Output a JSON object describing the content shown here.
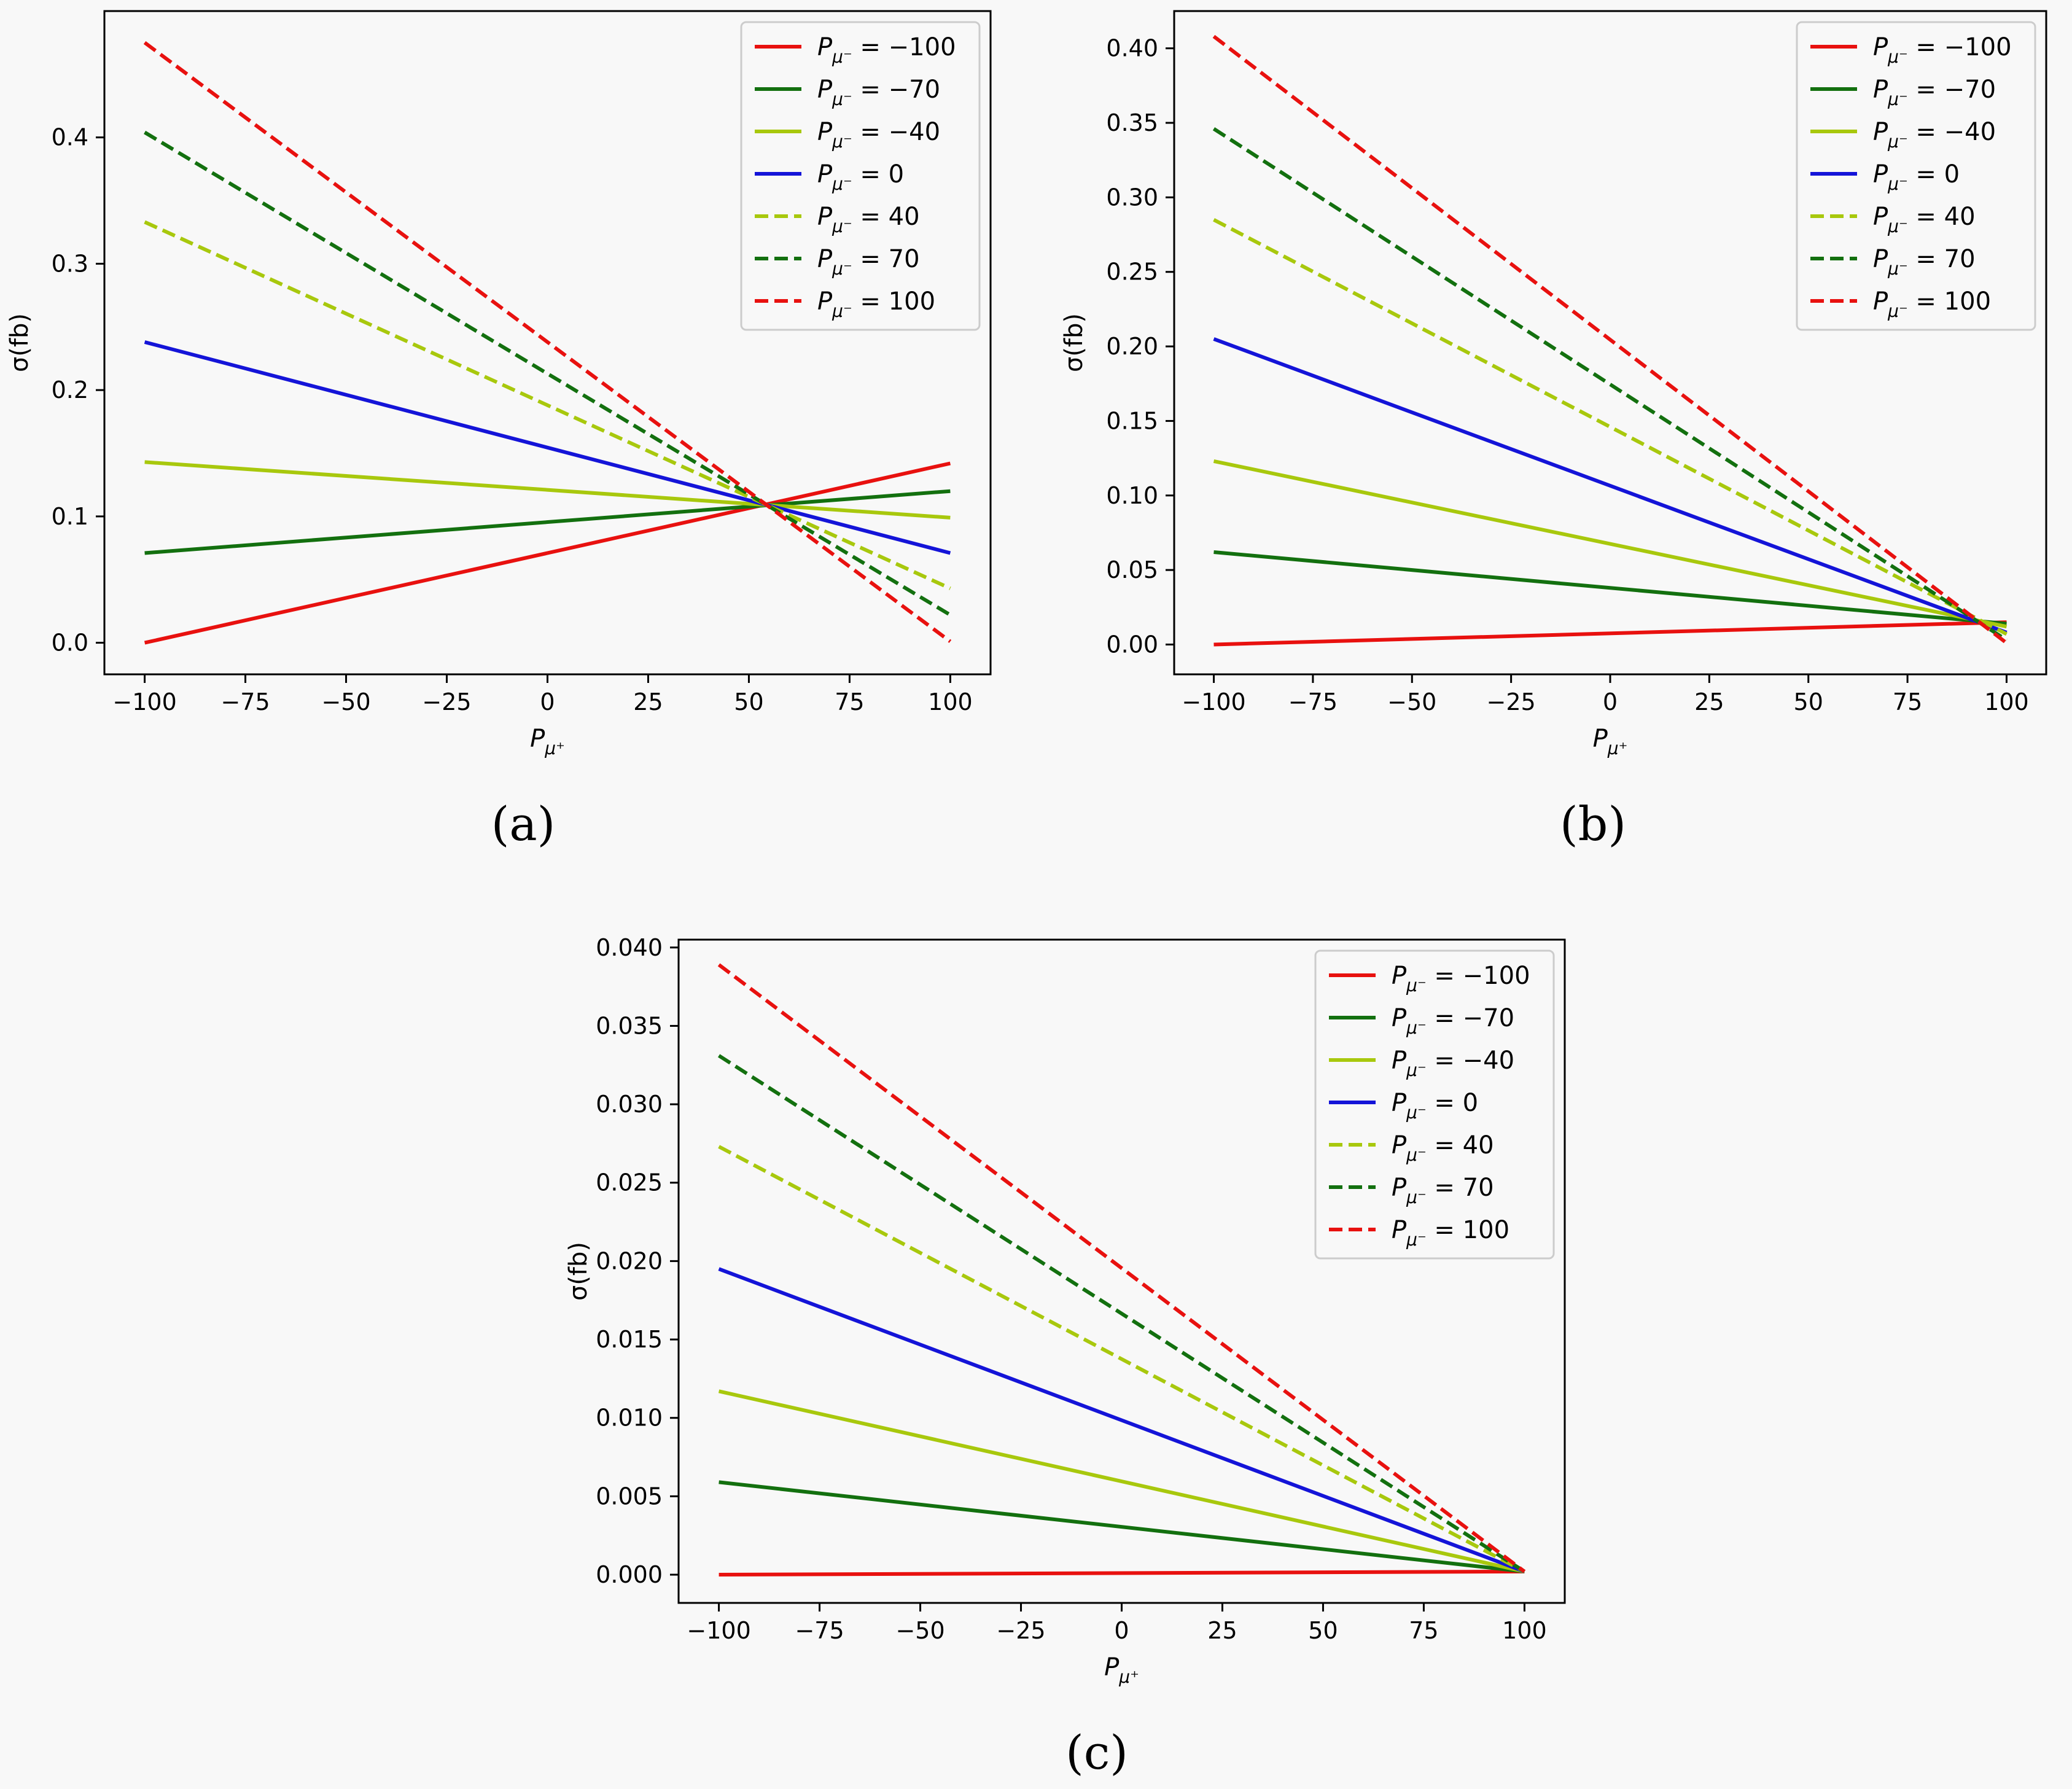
{
  "chart_data": [
    {
      "type": "line",
      "caption": "(a)",
      "xlabel": "P",
      "xlabel_sub": "μ⁺",
      "ylabel": "σ(fb)",
      "xlim": [
        -110,
        110
      ],
      "ylim": [
        -0.025,
        0.5
      ],
      "xticks": [
        -100,
        -75,
        -50,
        -25,
        0,
        25,
        50,
        75,
        100
      ],
      "xtick_labels": [
        "−100",
        "−75",
        "−50",
        "−25",
        "0",
        "25",
        "50",
        "75",
        "100"
      ],
      "yticks": [
        0.0,
        0.1,
        0.2,
        0.3,
        0.4
      ],
      "ytick_labels": [
        "0.0",
        "0.1",
        "0.2",
        "0.3",
        "0.4"
      ],
      "legend_position": "top-right",
      "series": [
        {
          "name": "P_{μ⁻} = −100",
          "label_main": "P",
          "label_sub": "μ⁻",
          "label_value": " = −100",
          "color": "#e8110f",
          "dash": "solid",
          "x": [
            -100,
            100
          ],
          "y": [
            0.0,
            0.142
          ]
        },
        {
          "name": "P_{μ⁻} = −70",
          "label_main": "P",
          "label_sub": "μ⁻",
          "label_value": " = −70",
          "color": "#13700f",
          "dash": "solid",
          "x": [
            -100,
            100
          ],
          "y": [
            0.071,
            0.12
          ]
        },
        {
          "name": "P_{μ⁻} = −40",
          "label_main": "P",
          "label_sub": "μ⁻",
          "label_value": " = −40",
          "color": "#a8c80d",
          "dash": "solid",
          "x": [
            -100,
            100
          ],
          "y": [
            0.143,
            0.099
          ]
        },
        {
          "name": "P_{μ⁻} = 0",
          "label_main": "P",
          "label_sub": "μ⁻",
          "label_value": " = 0",
          "color": "#1414d8",
          "dash": "solid",
          "x": [
            -100,
            100
          ],
          "y": [
            0.238,
            0.071
          ]
        },
        {
          "name": "P_{μ⁻} = 40",
          "label_main": "P",
          "label_sub": "μ⁻",
          "label_value": " = 40",
          "color": "#a8c80d",
          "dash": "dashed",
          "x": [
            -100,
            100
          ],
          "y": [
            0.333,
            0.043
          ]
        },
        {
          "name": "P_{μ⁻} = 70",
          "label_main": "P",
          "label_sub": "μ⁻",
          "label_value": " = 70",
          "color": "#13700f",
          "dash": "dashed",
          "x": [
            -100,
            100
          ],
          "y": [
            0.404,
            0.022
          ]
        },
        {
          "name": "P_{μ⁻} = 100",
          "label_main": "P",
          "label_sub": "μ⁻",
          "label_value": " = 100",
          "color": "#e8110f",
          "dash": "dashed",
          "x": [
            -100,
            100
          ],
          "y": [
            0.475,
            0.001
          ]
        }
      ]
    },
    {
      "type": "line",
      "caption": "(b)",
      "xlabel": "P",
      "xlabel_sub": "μ⁺",
      "ylabel": "σ(fb)",
      "xlim": [
        -110,
        110
      ],
      "ylim": [
        -0.02,
        0.425
      ],
      "xticks": [
        -100,
        -75,
        -50,
        -25,
        0,
        25,
        50,
        75,
        100
      ],
      "xtick_labels": [
        "−100",
        "−75",
        "−50",
        "−25",
        "0",
        "25",
        "50",
        "75",
        "100"
      ],
      "yticks": [
        0.0,
        0.05,
        0.1,
        0.15,
        0.2,
        0.25,
        0.3,
        0.35,
        0.4
      ],
      "ytick_labels": [
        "0.00",
        "0.05",
        "0.10",
        "0.15",
        "0.20",
        "0.25",
        "0.30",
        "0.35",
        "0.40"
      ],
      "legend_position": "top-right",
      "series": [
        {
          "name": "P_{μ⁻} = −100",
          "label_main": "P",
          "label_sub": "μ⁻",
          "label_value": " = −100",
          "color": "#e8110f",
          "dash": "solid",
          "x": [
            -100,
            100
          ],
          "y": [
            0.0,
            0.015
          ]
        },
        {
          "name": "P_{μ⁻} = −70",
          "label_main": "P",
          "label_sub": "μ⁻",
          "label_value": " = −70",
          "color": "#13700f",
          "dash": "solid",
          "x": [
            -100,
            100
          ],
          "y": [
            0.062,
            0.014
          ]
        },
        {
          "name": "P_{μ⁻} = −40",
          "label_main": "P",
          "label_sub": "μ⁻",
          "label_value": " = −40",
          "color": "#a8c80d",
          "dash": "solid",
          "x": [
            -100,
            100
          ],
          "y": [
            0.123,
            0.012
          ]
        },
        {
          "name": "P_{μ⁻} = 0",
          "label_main": "P",
          "label_sub": "μ⁻",
          "label_value": " = 0",
          "color": "#1414d8",
          "dash": "solid",
          "x": [
            -100,
            100
          ],
          "y": [
            0.205,
            0.008
          ]
        },
        {
          "name": "P_{μ⁻} = 40",
          "label_main": "P",
          "label_sub": "μ⁻",
          "label_value": " = 40",
          "color": "#a8c80d",
          "dash": "dashed",
          "x": [
            -100,
            100
          ],
          "y": [
            0.285,
            0.007
          ]
        },
        {
          "name": "P_{μ⁻} = 70",
          "label_main": "P",
          "label_sub": "μ⁻",
          "label_value": " = 70",
          "color": "#13700f",
          "dash": "dashed",
          "x": [
            -100,
            100
          ],
          "y": [
            0.346,
            0.003
          ]
        },
        {
          "name": "P_{μ⁻} = 100",
          "label_main": "P",
          "label_sub": "μ⁻",
          "label_value": " = 100",
          "color": "#e8110f",
          "dash": "dashed",
          "x": [
            -100,
            100
          ],
          "y": [
            0.408,
            0.001
          ]
        }
      ]
    },
    {
      "type": "line",
      "caption": "(c)",
      "xlabel": "P",
      "xlabel_sub": "μ⁺",
      "ylabel": "σ(fb)",
      "xlim": [
        -110,
        110
      ],
      "ylim": [
        -0.0018,
        0.0405
      ],
      "xticks": [
        -100,
        -75,
        -50,
        -25,
        0,
        25,
        50,
        75,
        100
      ],
      "xtick_labels": [
        "−100",
        "−75",
        "−50",
        "−25",
        "0",
        "25",
        "50",
        "75",
        "100"
      ],
      "yticks": [
        0.0,
        0.005,
        0.01,
        0.015,
        0.02,
        0.025,
        0.03,
        0.035,
        0.04
      ],
      "ytick_labels": [
        "0.000",
        "0.005",
        "0.010",
        "0.015",
        "0.020",
        "0.025",
        "0.030",
        "0.035",
        "0.040"
      ],
      "legend_position": "top-right",
      "series": [
        {
          "name": "P_{μ⁻} = −100",
          "label_main": "P",
          "label_sub": "μ⁻",
          "label_value": " = −100",
          "color": "#e8110f",
          "dash": "solid",
          "x": [
            -100,
            100
          ],
          "y": [
            0.0,
            0.0002
          ]
        },
        {
          "name": "P_{μ⁻} = −70",
          "label_main": "P",
          "label_sub": "μ⁻",
          "label_value": " = −70",
          "color": "#13700f",
          "dash": "solid",
          "x": [
            -100,
            100
          ],
          "y": [
            0.0059,
            0.0002
          ]
        },
        {
          "name": "P_{μ⁻} = −40",
          "label_main": "P",
          "label_sub": "μ⁻",
          "label_value": " = −40",
          "color": "#a8c80d",
          "dash": "solid",
          "x": [
            -100,
            100
          ],
          "y": [
            0.0117,
            0.0002
          ]
        },
        {
          "name": "P_{μ⁻} = 0",
          "label_main": "P",
          "label_sub": "μ⁻",
          "label_value": " = 0",
          "color": "#1414d8",
          "dash": "solid",
          "x": [
            -100,
            100
          ],
          "y": [
            0.0195,
            0.0002
          ]
        },
        {
          "name": "P_{μ⁻} = 40",
          "label_main": "P",
          "label_sub": "μ⁻",
          "label_value": " = 40",
          "color": "#a8c80d",
          "dash": "dashed",
          "x": [
            -100,
            100
          ],
          "y": [
            0.0273,
            0.0002
          ]
        },
        {
          "name": "P_{μ⁻} = 70",
          "label_main": "P",
          "label_sub": "μ⁻",
          "label_value": " = 70",
          "color": "#13700f",
          "dash": "dashed",
          "x": [
            -100,
            100
          ],
          "y": [
            0.0331,
            0.0002
          ]
        },
        {
          "name": "P_{μ⁻} = 100",
          "label_main": "P",
          "label_sub": "μ⁻",
          "label_value": " = 100",
          "color": "#e8110f",
          "dash": "dashed",
          "x": [
            -100,
            100
          ],
          "y": [
            0.0389,
            0.0002
          ]
        }
      ]
    }
  ]
}
